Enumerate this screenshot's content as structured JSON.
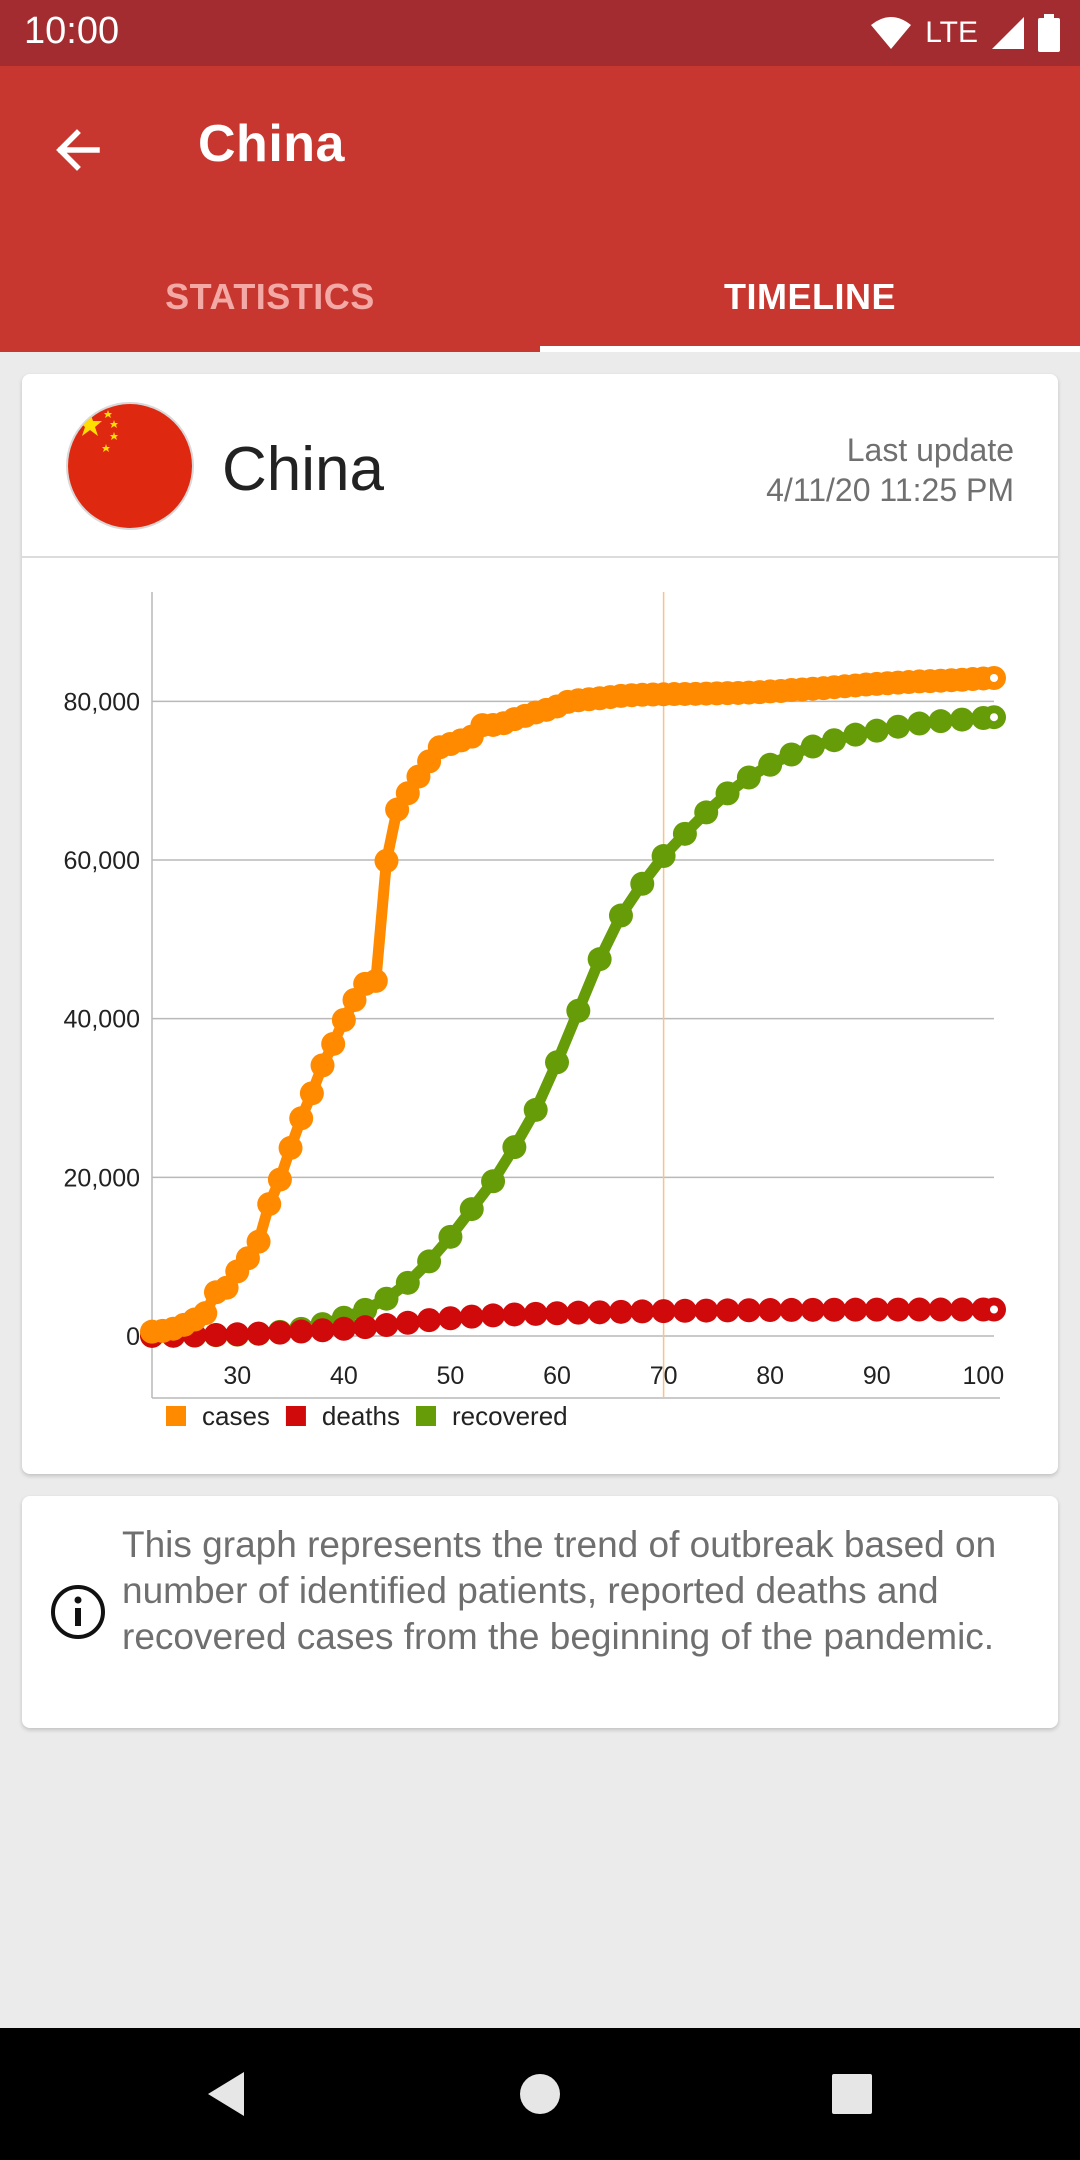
{
  "status_bar": {
    "time": "10:00",
    "network": "LTE",
    "icons": [
      "wifi-icon",
      "signal-icon",
      "battery-icon"
    ]
  },
  "app_bar": {
    "title": "China",
    "back_icon": "arrow-left-icon"
  },
  "tabs": [
    {
      "label": "STATISTICS",
      "selected": false
    },
    {
      "label": "TIMELINE",
      "selected": true
    }
  ],
  "card": {
    "country": "China",
    "flag_icon": "china-flag-icon",
    "last_update_label": "Last update",
    "last_update_value": "4/11/20 11:25 PM"
  },
  "chart_data": {
    "type": "line",
    "xlim": [
      22,
      101
    ],
    "ylim": [
      0,
      90000
    ],
    "x_ticks": [
      30,
      40,
      50,
      60,
      70,
      80,
      90,
      100
    ],
    "y_ticks": [
      0,
      20000,
      40000,
      60000,
      80000
    ],
    "x_tick_labels": [
      "30",
      "40",
      "50",
      "60",
      "70",
      "80",
      "90",
      "100"
    ],
    "y_tick_labels": [
      "0",
      "20,000",
      "40,000",
      "60,000",
      "80,000"
    ],
    "highlight_x": 70,
    "grid": true,
    "legend_position": "bottom-left",
    "series": [
      {
        "name": "cases",
        "color": "#ff8a00",
        "points": [
          [
            22,
            548
          ],
          [
            23,
            643
          ],
          [
            24,
            920
          ],
          [
            25,
            1406
          ],
          [
            26,
            2075
          ],
          [
            27,
            2877
          ],
          [
            28,
            5509
          ],
          [
            29,
            6087
          ],
          [
            30,
            8141
          ],
          [
            31,
            9802
          ],
          [
            32,
            11891
          ],
          [
            33,
            16630
          ],
          [
            34,
            19716
          ],
          [
            35,
            23707
          ],
          [
            36,
            27440
          ],
          [
            37,
            30587
          ],
          [
            38,
            34110
          ],
          [
            39,
            36814
          ],
          [
            40,
            39829
          ],
          [
            41,
            42354
          ],
          [
            42,
            44386
          ],
          [
            43,
            44759
          ],
          [
            44,
            59895
          ],
          [
            45,
            66358
          ],
          [
            46,
            68413
          ],
          [
            47,
            70513
          ],
          [
            48,
            72434
          ],
          [
            49,
            74211
          ],
          [
            50,
            74619
          ],
          [
            51,
            75077
          ],
          [
            52,
            75550
          ],
          [
            53,
            77001
          ],
          [
            54,
            77022
          ],
          [
            55,
            77241
          ],
          [
            56,
            77754
          ],
          [
            57,
            78166
          ],
          [
            58,
            78600
          ],
          [
            59,
            78928
          ],
          [
            60,
            79356
          ],
          [
            61,
            79932
          ],
          [
            62,
            80136
          ],
          [
            63,
            80261
          ],
          [
            64,
            80386
          ],
          [
            65,
            80537
          ],
          [
            66,
            80690
          ],
          [
            67,
            80770
          ],
          [
            68,
            80823
          ],
          [
            69,
            80860
          ],
          [
            70,
            80887
          ],
          [
            71,
            80921
          ],
          [
            72,
            80932
          ],
          [
            73,
            80945
          ],
          [
            74,
            80977
          ],
          [
            75,
            81003
          ],
          [
            76,
            81033
          ],
          [
            77,
            81058
          ],
          [
            78,
            81102
          ],
          [
            79,
            81156
          ],
          [
            80,
            81250
          ],
          [
            81,
            81305
          ],
          [
            82,
            81435
          ],
          [
            83,
            81498
          ],
          [
            84,
            81591
          ],
          [
            85,
            81661
          ],
          [
            86,
            81782
          ],
          [
            87,
            81897
          ],
          [
            88,
            81999
          ],
          [
            89,
            82122
          ],
          [
            90,
            82198
          ],
          [
            91,
            82279
          ],
          [
            92,
            82361
          ],
          [
            93,
            82432
          ],
          [
            94,
            82511
          ],
          [
            95,
            82543
          ],
          [
            96,
            82602
          ],
          [
            97,
            82665
          ],
          [
            98,
            82718
          ],
          [
            99,
            82809
          ],
          [
            100,
            82883
          ],
          [
            101,
            82941
          ]
        ]
      },
      {
        "name": "deaths",
        "color": "#d0090a",
        "points": [
          [
            22,
            17
          ],
          [
            24,
            26
          ],
          [
            26,
            56
          ],
          [
            28,
            131
          ],
          [
            30,
            213
          ],
          [
            32,
            304
          ],
          [
            34,
            425
          ],
          [
            36,
            563
          ],
          [
            38,
            722
          ],
          [
            40,
            908
          ],
          [
            42,
            1113
          ],
          [
            44,
            1380
          ],
          [
            46,
            1665
          ],
          [
            48,
            2004
          ],
          [
            50,
            2238
          ],
          [
            52,
            2442
          ],
          [
            54,
            2595
          ],
          [
            56,
            2717
          ],
          [
            58,
            2788
          ],
          [
            60,
            2870
          ],
          [
            62,
            2943
          ],
          [
            64,
            2985
          ],
          [
            66,
            3045
          ],
          [
            68,
            3099
          ],
          [
            70,
            3136
          ],
          [
            72,
            3176
          ],
          [
            74,
            3203
          ],
          [
            76,
            3226
          ],
          [
            78,
            3248
          ],
          [
            80,
            3270
          ],
          [
            82,
            3287
          ],
          [
            84,
            3300
          ],
          [
            86,
            3309
          ],
          [
            88,
            3318
          ],
          [
            90,
            3326
          ],
          [
            92,
            3330
          ],
          [
            94,
            3333
          ],
          [
            96,
            3335
          ],
          [
            98,
            3337
          ],
          [
            100,
            3339
          ],
          [
            101,
            3341
          ]
        ]
      },
      {
        "name": "recovered",
        "color": "#669c08",
        "points": [
          [
            22,
            28
          ],
          [
            24,
            36
          ],
          [
            26,
            60
          ],
          [
            28,
            110
          ],
          [
            30,
            170
          ],
          [
            32,
            280
          ],
          [
            34,
            520
          ],
          [
            36,
            900
          ],
          [
            38,
            1500
          ],
          [
            40,
            2300
          ],
          [
            42,
            3300
          ],
          [
            44,
            4700
          ],
          [
            46,
            6700
          ],
          [
            48,
            9400
          ],
          [
            50,
            12500
          ],
          [
            52,
            16000
          ],
          [
            54,
            19500
          ],
          [
            56,
            23800
          ],
          [
            58,
            28500
          ],
          [
            60,
            34500
          ],
          [
            62,
            41000
          ],
          [
            64,
            47500
          ],
          [
            66,
            53000
          ],
          [
            68,
            57000
          ],
          [
            70,
            60500
          ],
          [
            72,
            63300
          ],
          [
            74,
            66000
          ],
          [
            76,
            68400
          ],
          [
            78,
            70400
          ],
          [
            80,
            72000
          ],
          [
            82,
            73300
          ],
          [
            84,
            74300
          ],
          [
            86,
            75100
          ],
          [
            88,
            75800
          ],
          [
            90,
            76300
          ],
          [
            92,
            76800
          ],
          [
            94,
            77200
          ],
          [
            96,
            77500
          ],
          [
            98,
            77700
          ],
          [
            100,
            77900
          ],
          [
            101,
            78000
          ]
        ]
      }
    ]
  },
  "info": {
    "icon": "info-icon",
    "text": "This graph represents the trend of outbreak based on number of identified patients, reported deaths and recovered cases from the beginning of the pandemic."
  },
  "nav_bar": {
    "icons": [
      "back-triangle-icon",
      "home-circle-icon",
      "recents-square-icon"
    ]
  }
}
